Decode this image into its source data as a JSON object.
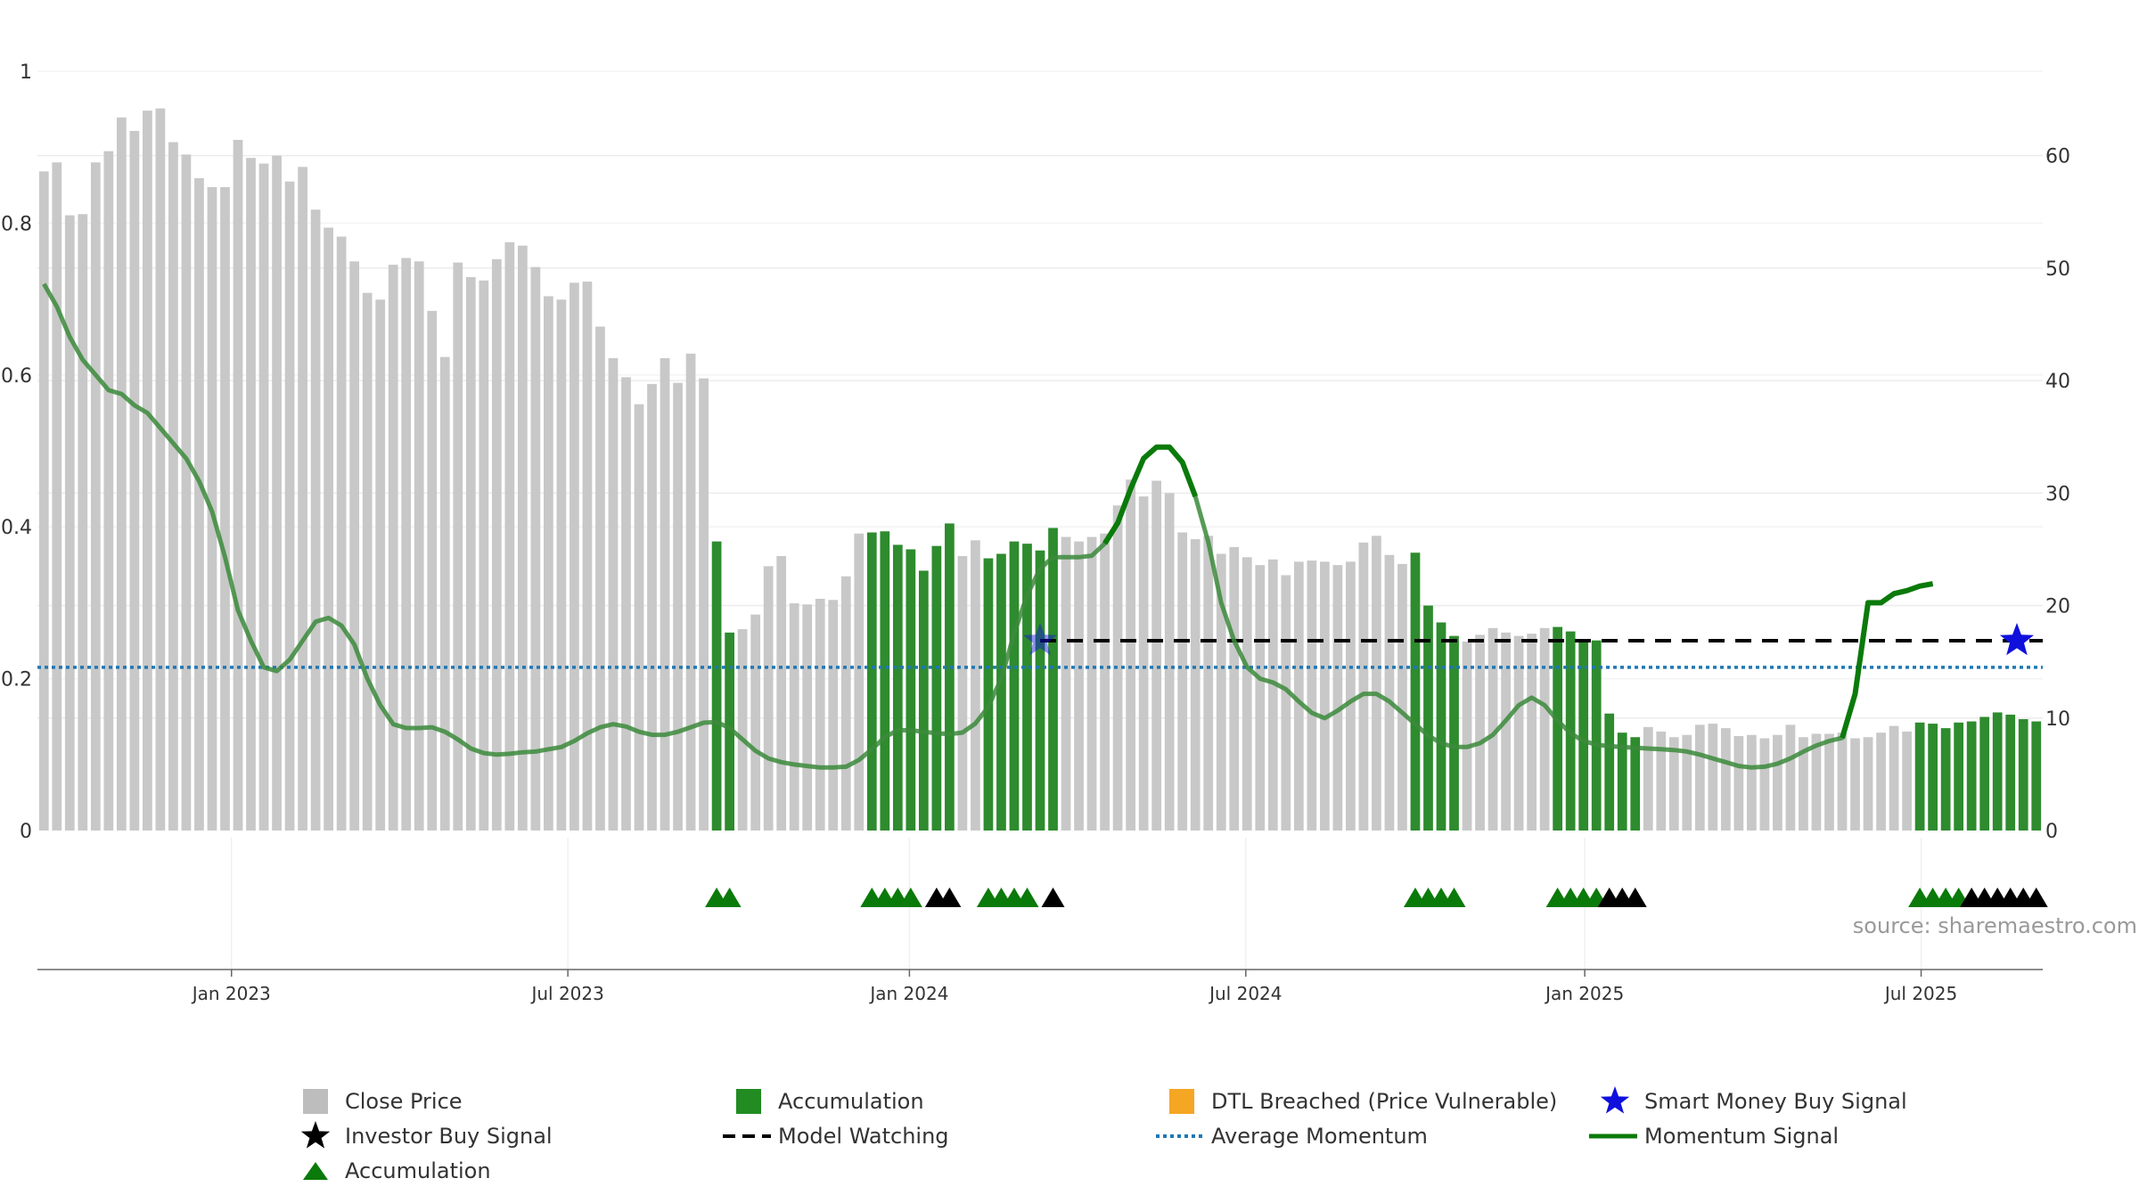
{
  "source_text": "source: sharemaestro.com",
  "colors": {
    "close_price": "#c8c8c8",
    "accumulation": "#2e8b2e",
    "dtl": "#f5a623",
    "smart_money": "#1010dd",
    "investor": "#000000",
    "model_watching": "#000000",
    "avg_momentum": "#1f77b4",
    "momentum": "#0a7a0a",
    "grid": "#ececec",
    "axis_text": "#333333"
  },
  "legend": [
    {
      "key": "close_price",
      "label": "Close Price",
      "symbol": "square",
      "color": "#bdbdbd"
    },
    {
      "key": "accumulation_bar",
      "label": "Accumulation",
      "symbol": "square",
      "color": "#228b22"
    },
    {
      "key": "dtl",
      "label": "DTL Breached (Price Vulnerable)",
      "symbol": "square",
      "color": "#f5a623"
    },
    {
      "key": "smart_money",
      "label": "Smart Money Buy Signal",
      "symbol": "star",
      "color": "#1010dd"
    },
    {
      "key": "investor",
      "label": "Investor Buy Signal",
      "symbol": "star",
      "color": "#000000"
    },
    {
      "key": "model_watching",
      "label": "Model Watching",
      "symbol": "dash",
      "color": "#000000"
    },
    {
      "key": "avg_momentum",
      "label": "Average Momentum",
      "symbol": "dot",
      "color": "#1f77b4"
    },
    {
      "key": "momentum",
      "label": "Momentum Signal",
      "symbol": "line",
      "color": "#0a7a0a"
    },
    {
      "key": "accumulation_marker",
      "label": "Accumulation",
      "symbol": "triangle",
      "color": "#0a7a0a"
    }
  ],
  "chart_data": {
    "type": "bar",
    "left_axis": {
      "ticks": [
        "0",
        "0.2",
        "0.4",
        "0.6",
        "0.8",
        "1"
      ],
      "range": [
        0,
        1
      ]
    },
    "right_axis": {
      "ticks": [
        "0",
        "10",
        "20",
        "30",
        "40",
        "50",
        "60"
      ],
      "range": [
        0,
        67.5
      ]
    },
    "x_axis": {
      "ticks": [
        "Jan 2023",
        "Jul 2023",
        "Jan 2024",
        "Jul 2024",
        "Jan 2025",
        "Jul 2025"
      ],
      "tick_weeks": [
        15,
        41,
        67.4,
        93.4,
        119.6,
        145.6
      ]
    },
    "grid": true,
    "legend_position": "bottom",
    "close_price": [
      58.6,
      59.4,
      54.7,
      54.8,
      59.4,
      60.4,
      63.4,
      62.2,
      64.0,
      64.2,
      61.2,
      60.1,
      58.0,
      57.2,
      57.2,
      61.4,
      59.8,
      59.3,
      60.0,
      57.7,
      59.0,
      55.2,
      53.6,
      52.8,
      50.6,
      47.8,
      47.2,
      50.3,
      50.9,
      50.6,
      46.2,
      42.1,
      50.5,
      49.2,
      48.9,
      50.8,
      52.3,
      52.0,
      50.1,
      47.5,
      47.2,
      48.7,
      48.8,
      44.8,
      42.0,
      40.3,
      37.9,
      39.7,
      42.0,
      39.8,
      42.4,
      40.2,
      25.7,
      17.6,
      17.9,
      19.2,
      23.5,
      24.4,
      20.2,
      20.1,
      20.6,
      20.5,
      22.6,
      26.4,
      26.5,
      26.6,
      25.4,
      25.0,
      23.1,
      25.3,
      27.3,
      24.4,
      25.8,
      24.2,
      24.6,
      25.7,
      25.5,
      24.9,
      26.9,
      26.1,
      25.7,
      26.1,
      26.4,
      28.9,
      31.2,
      29.7,
      31.1,
      30.0,
      26.5,
      25.9,
      26.2,
      24.6,
      25.2,
      24.3,
      23.6,
      24.1,
      22.7,
      23.9,
      24.0,
      23.9,
      23.6,
      23.9,
      25.6,
      26.2,
      24.5,
      23.7,
      24.7,
      20.0,
      18.5,
      17.3,
      16.8,
      17.4,
      18.0,
      17.6,
      17.3,
      17.5,
      18.0,
      18.1,
      17.7,
      16.9,
      16.9,
      10.4,
      8.7,
      8.3,
      9.2,
      8.8,
      8.3,
      8.5,
      9.4,
      9.5,
      9.1,
      8.4,
      8.5,
      8.2,
      8.5,
      9.4,
      8.3,
      8.6,
      8.6,
      8.7,
      8.2,
      8.3,
      8.7,
      9.3,
      8.8,
      9.6,
      9.5,
      9.1,
      9.6,
      9.7,
      10.1,
      10.5,
      10.3,
      9.9,
      9.7
    ],
    "accumulation_weeks": [
      52,
      53,
      64,
      65,
      66,
      67,
      68,
      69,
      70,
      73,
      74,
      75,
      76,
      77,
      78,
      106,
      107,
      108,
      109,
      117,
      118,
      119,
      120,
      121,
      122,
      123,
      145,
      146,
      147,
      148,
      149,
      150,
      151,
      152,
      153,
      154,
      155
    ],
    "momentum_points": [
      [
        0,
        0.72
      ],
      [
        1,
        0.69
      ],
      [
        2,
        0.65
      ],
      [
        3,
        0.62
      ],
      [
        4,
        0.6
      ],
      [
        5,
        0.58
      ],
      [
        6,
        0.575
      ],
      [
        7,
        0.56
      ],
      [
        8,
        0.55
      ],
      [
        9,
        0.53
      ],
      [
        10,
        0.51
      ],
      [
        11,
        0.49
      ],
      [
        12,
        0.46
      ],
      [
        13,
        0.42
      ],
      [
        14,
        0.36
      ],
      [
        15,
        0.29
      ],
      [
        16,
        0.25
      ],
      [
        17,
        0.215
      ],
      [
        18,
        0.21
      ],
      [
        19,
        0.225
      ],
      [
        20,
        0.25
      ],
      [
        21,
        0.275
      ],
      [
        22,
        0.28
      ],
      [
        23,
        0.27
      ],
      [
        24,
        0.245
      ],
      [
        25,
        0.2
      ],
      [
        26,
        0.165
      ],
      [
        27,
        0.14
      ],
      [
        28,
        0.135
      ],
      [
        29,
        0.135
      ],
      [
        30,
        0.136
      ],
      [
        31,
        0.13
      ],
      [
        32,
        0.12
      ],
      [
        33,
        0.108
      ],
      [
        34,
        0.102
      ],
      [
        35,
        0.1
      ],
      [
        36,
        0.101
      ],
      [
        37,
        0.103
      ],
      [
        38,
        0.104
      ],
      [
        39,
        0.107
      ],
      [
        40,
        0.11
      ],
      [
        41,
        0.118
      ],
      [
        42,
        0.128
      ],
      [
        43,
        0.136
      ],
      [
        44,
        0.14
      ],
      [
        45,
        0.137
      ],
      [
        46,
        0.13
      ],
      [
        47,
        0.126
      ],
      [
        48,
        0.126
      ],
      [
        49,
        0.13
      ],
      [
        50,
        0.136
      ],
      [
        51,
        0.142
      ],
      [
        52,
        0.143
      ],
      [
        53,
        0.135
      ],
      [
        54,
        0.12
      ],
      [
        55,
        0.105
      ],
      [
        56,
        0.095
      ],
      [
        57,
        0.09
      ],
      [
        58,
        0.087
      ],
      [
        59,
        0.085
      ],
      [
        60,
        0.083
      ],
      [
        61,
        0.083
      ],
      [
        62,
        0.084
      ],
      [
        63,
        0.093
      ],
      [
        64,
        0.107
      ],
      [
        65,
        0.123
      ],
      [
        66,
        0.132
      ],
      [
        67,
        0.132
      ],
      [
        68,
        0.13
      ],
      [
        69,
        0.128
      ],
      [
        70,
        0.127
      ],
      [
        71,
        0.129
      ],
      [
        72,
        0.141
      ],
      [
        73,
        0.163
      ],
      [
        74,
        0.2
      ],
      [
        75,
        0.26
      ],
      [
        76,
        0.31
      ],
      [
        77,
        0.345
      ],
      [
        78,
        0.36
      ],
      [
        79,
        0.36
      ],
      [
        80,
        0.36
      ],
      [
        81,
        0.362
      ],
      [
        82,
        0.378
      ],
      [
        83,
        0.405
      ],
      [
        84,
        0.45
      ],
      [
        85,
        0.49
      ],
      [
        86,
        0.505
      ],
      [
        87,
        0.505
      ],
      [
        88,
        0.485
      ],
      [
        89,
        0.44
      ],
      [
        90,
        0.38
      ],
      [
        91,
        0.3
      ],
      [
        92,
        0.25
      ],
      [
        93,
        0.215
      ],
      [
        94,
        0.2
      ],
      [
        95,
        0.195
      ],
      [
        96,
        0.186
      ],
      [
        97,
        0.17
      ],
      [
        98,
        0.155
      ],
      [
        99,
        0.148
      ],
      [
        100,
        0.158
      ],
      [
        101,
        0.17
      ],
      [
        102,
        0.18
      ],
      [
        103,
        0.18
      ],
      [
        104,
        0.17
      ],
      [
        105,
        0.155
      ],
      [
        106,
        0.14
      ],
      [
        107,
        0.125
      ],
      [
        108,
        0.115
      ],
      [
        109,
        0.11
      ],
      [
        110,
        0.11
      ],
      [
        111,
        0.115
      ],
      [
        112,
        0.126
      ],
      [
        113,
        0.145
      ],
      [
        114,
        0.165
      ],
      [
        115,
        0.175
      ],
      [
        116,
        0.165
      ],
      [
        117,
        0.145
      ],
      [
        118,
        0.128
      ],
      [
        119,
        0.118
      ],
      [
        120,
        0.113
      ],
      [
        121,
        0.111
      ],
      [
        122,
        0.11
      ],
      [
        123,
        0.109
      ],
      [
        124,
        0.108
      ],
      [
        125,
        0.107
      ],
      [
        126,
        0.106
      ],
      [
        127,
        0.104
      ],
      [
        128,
        0.1
      ],
      [
        129,
        0.095
      ],
      [
        130,
        0.09
      ],
      [
        131,
        0.085
      ],
      [
        132,
        0.083
      ],
      [
        133,
        0.084
      ],
      [
        134,
        0.088
      ],
      [
        135,
        0.095
      ],
      [
        136,
        0.104
      ],
      [
        137,
        0.112
      ],
      [
        138,
        0.118
      ],
      [
        139,
        0.122
      ],
      [
        140,
        0.18
      ],
      [
        141,
        0.3
      ],
      [
        142,
        0.3
      ],
      [
        143,
        0.312
      ],
      [
        144,
        0.316
      ],
      [
        145,
        0.322
      ],
      [
        146,
        0.325
      ]
    ],
    "momentum_highlight_ranges": [
      [
        82,
        89
      ],
      [
        139,
        146
      ]
    ],
    "average_momentum": 0.215,
    "model_watching": {
      "level": 0.25,
      "from_week": 77,
      "to_week": 157
    },
    "smart_money_signals": [
      {
        "week": 77,
        "value": 0.25,
        "faded": true
      },
      {
        "week": 152.5,
        "value": 0.25,
        "faded": false
      }
    ],
    "accumulation_triangles": [
      52.5,
      53.5,
      64.5,
      65.5,
      66.5,
      67.5,
      73.5,
      74.5,
      75.5,
      76.5,
      106.5,
      107.5,
      108.5,
      109.5,
      117.5,
      118.5,
      119.5,
      120.5,
      145.5,
      146.5,
      147.5,
      148.5
    ],
    "investor_triangles": [
      69.5,
      70.5,
      78.5,
      121.5,
      122.5,
      123.5,
      149.5,
      150.5,
      151.5,
      152.5,
      153.5,
      154.5
    ]
  }
}
